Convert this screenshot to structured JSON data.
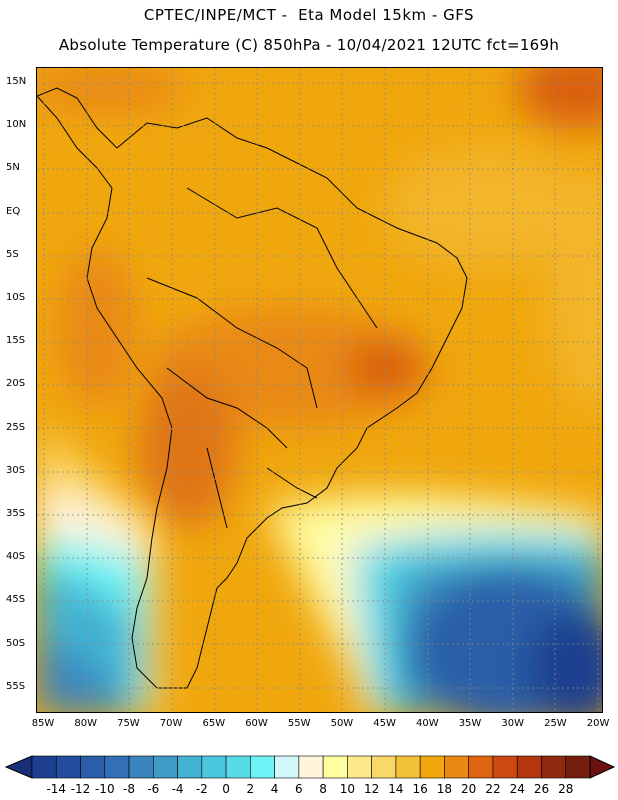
{
  "title": {
    "line1": "CPTEC/INPE/MCT -  Eta Model 15km - GFS",
    "line2": "Absolute Temperature (C) 850hPa - 10/04/2021 12UTC fct=169h"
  },
  "map": {
    "lat_labels": [
      "15N",
      "10N",
      "5N",
      "EQ",
      "5S",
      "10S",
      "15S",
      "20S",
      "25S",
      "30S",
      "35S",
      "40S",
      "45S",
      "50S",
      "55S"
    ],
    "lon_labels": [
      "85W",
      "80W",
      "75W",
      "70W",
      "65W",
      "60W",
      "55W",
      "50W",
      "45W",
      "40W",
      "35W",
      "30W",
      "25W",
      "20W"
    ],
    "gridlines": true
  },
  "colorbar": {
    "labels": [
      "-14",
      "-12",
      "-10",
      "-8",
      "-6",
      "-4",
      "-2",
      "0",
      "2",
      "4",
      "6",
      "8",
      "10",
      "12",
      "14",
      "16",
      "18",
      "20",
      "22",
      "24",
      "26",
      "28"
    ],
    "colors": [
      "#1d3f8f",
      "#234d9c",
      "#2b5ea8",
      "#336fb4",
      "#3a84bf",
      "#3d9bc6",
      "#42b3d2",
      "#4ac7de",
      "#57dbe8",
      "#6df3f5",
      "#d2f6fa",
      "#fff5dc",
      "#fefda0",
      "#fde98a",
      "#f9d768",
      "#f3c236",
      "#efa60f",
      "#e98913",
      "#de6410",
      "#cc4a11",
      "#b33611",
      "#8f2a10",
      "#741f0e"
    ]
  }
}
